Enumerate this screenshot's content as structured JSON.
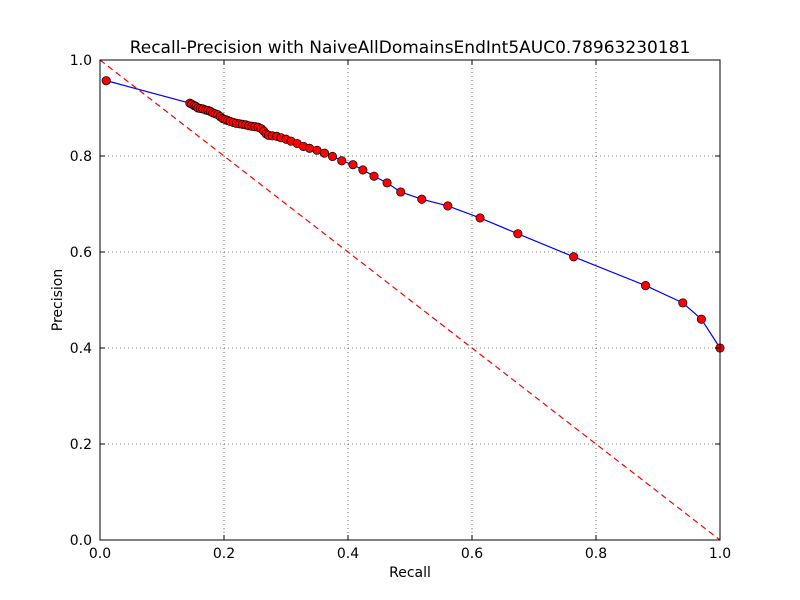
{
  "chart_data": {
    "type": "line",
    "title": "Recall-Precision with NaiveAllDomainsEndInt5AUC0.78963230181",
    "xlabel": "Recall",
    "ylabel": "Precision",
    "xlim": [
      0.0,
      1.0
    ],
    "ylim": [
      0.0,
      1.0
    ],
    "x_ticks": [
      0.0,
      0.2,
      0.4,
      0.6,
      0.8,
      1.0
    ],
    "y_ticks": [
      0.0,
      0.2,
      0.4,
      0.6,
      0.8,
      1.0
    ],
    "x_tick_labels": [
      "0.0",
      "0.2",
      "0.4",
      "0.6",
      "0.8",
      "1.0"
    ],
    "y_tick_labels": [
      "0.0",
      "0.2",
      "0.4",
      "0.6",
      "0.8",
      "1.0"
    ],
    "grid": true,
    "series": [
      {
        "style": "line-with-markers",
        "line_color": "#0000ff",
        "marker_color": "#ff0000",
        "x": [
          0.01,
          0.145,
          0.148,
          0.152,
          0.155,
          0.158,
          0.162,
          0.166,
          0.17,
          0.174,
          0.178,
          0.182,
          0.186,
          0.19,
          0.194,
          0.198,
          0.202,
          0.206,
          0.21,
          0.215,
          0.22,
          0.225,
          0.23,
          0.235,
          0.24,
          0.245,
          0.25,
          0.255,
          0.26,
          0.264,
          0.268,
          0.272,
          0.278,
          0.285,
          0.292,
          0.3,
          0.308,
          0.318,
          0.328,
          0.338,
          0.35,
          0.362,
          0.375,
          0.39,
          0.408,
          0.424,
          0.442,
          0.463,
          0.485,
          0.519,
          0.561,
          0.613,
          0.674,
          0.764,
          0.88,
          0.94,
          0.97,
          1.0
        ],
        "y": [
          0.957,
          0.91,
          0.908,
          0.905,
          0.903,
          0.9,
          0.899,
          0.898,
          0.896,
          0.895,
          0.893,
          0.89,
          0.888,
          0.886,
          0.882,
          0.878,
          0.876,
          0.874,
          0.872,
          0.87,
          0.868,
          0.867,
          0.866,
          0.865,
          0.863,
          0.862,
          0.861,
          0.86,
          0.857,
          0.852,
          0.846,
          0.843,
          0.842,
          0.841,
          0.838,
          0.835,
          0.831,
          0.826,
          0.82,
          0.816,
          0.812,
          0.806,
          0.799,
          0.79,
          0.782,
          0.771,
          0.758,
          0.744,
          0.725,
          0.71,
          0.696,
          0.671,
          0.638,
          0.59,
          0.53,
          0.494,
          0.46,
          0.4
        ]
      },
      {
        "style": "dashed",
        "line_color": "#ff0000",
        "x": [
          0.0,
          1.0
        ],
        "y": [
          1.0,
          0.0
        ]
      }
    ]
  }
}
